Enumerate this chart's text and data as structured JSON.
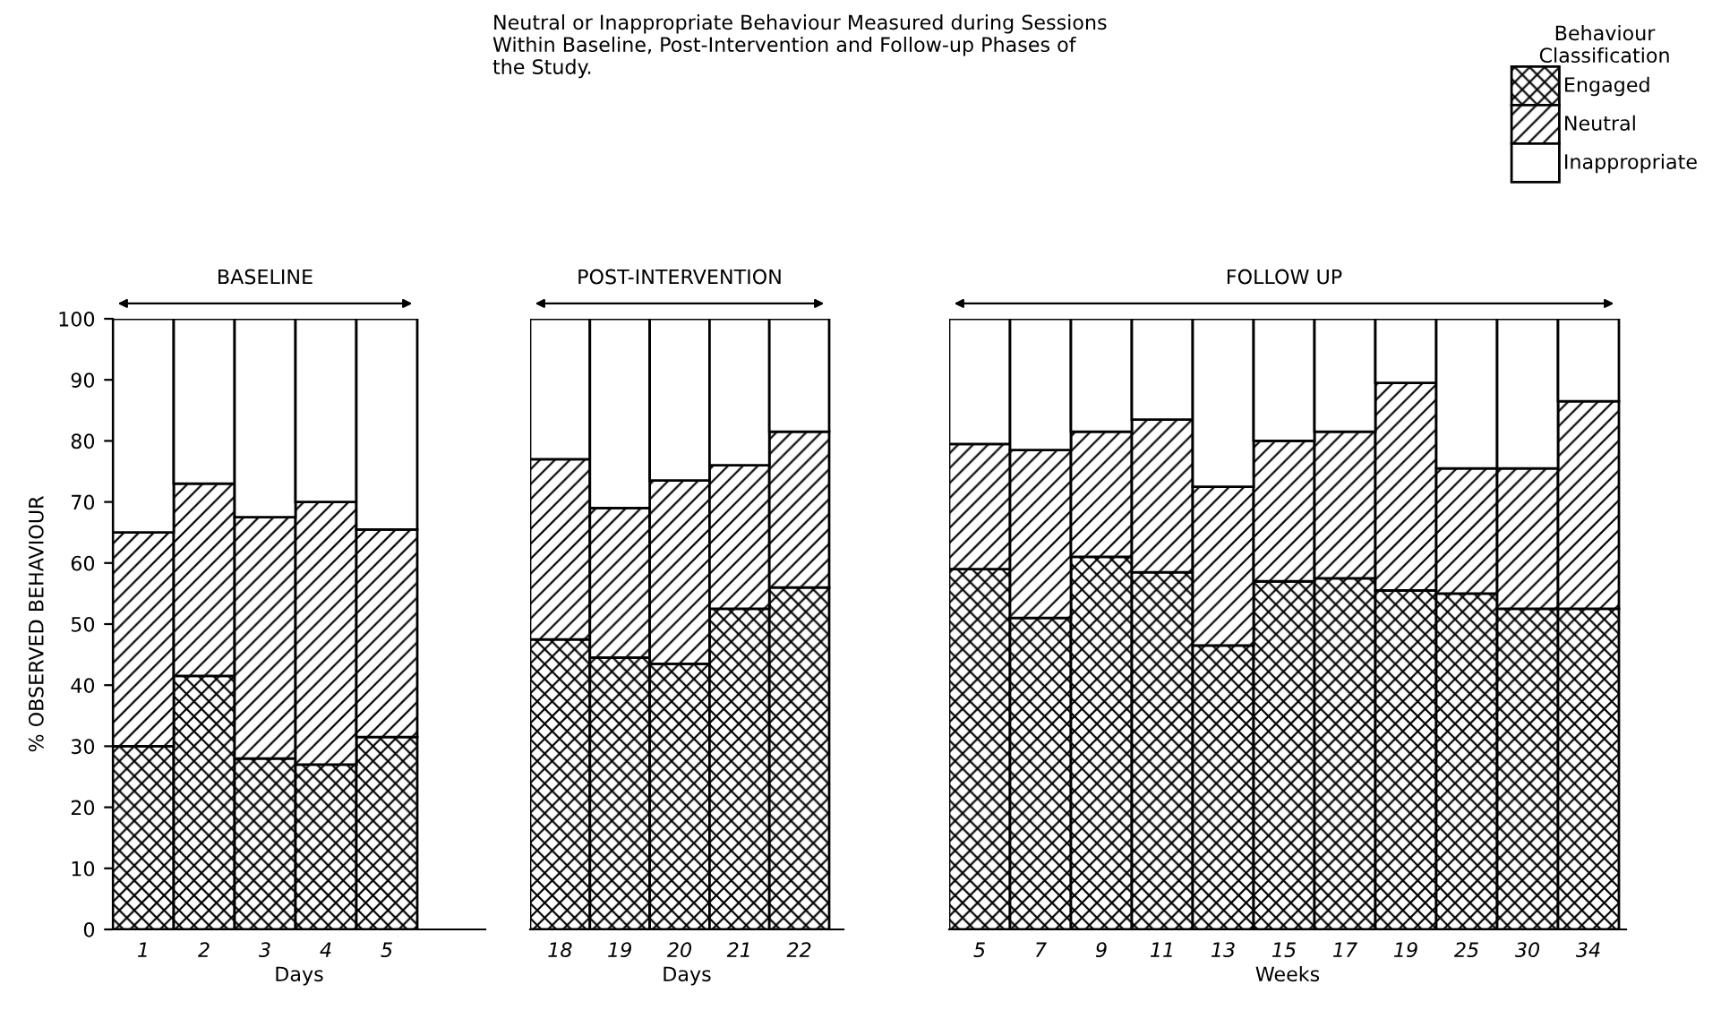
{
  "chart_data": [
    {
      "type": "bar",
      "stacked": true,
      "title": "BASELINE",
      "xlabel": "Days",
      "ylabel": "% OBSERVED BEHAVIOUR",
      "categories": [
        "1",
        "2",
        "3",
        "4",
        "5"
      ],
      "ylim": [
        0,
        100
      ],
      "yticks": [
        0,
        10,
        20,
        30,
        40,
        50,
        60,
        70,
        80,
        90,
        100
      ],
      "grid": false,
      "legend": "top right",
      "legend_title": "Behaviour\nClassification",
      "annotations": [
        "Neutral or Inappropriate Behaviour Measured during Sessions\nWithin Baseline, Post-Intervention and Follow-up Phases of\nthe Study."
      ],
      "series": [
        {
          "name": "Engaged",
          "color": "#000000",
          "values": [
            30,
            41.5,
            28,
            27,
            31.5
          ]
        },
        {
          "name": "Neutral",
          "color": "#000000",
          "values": [
            35,
            31.5,
            39.5,
            43,
            34
          ]
        },
        {
          "name": "Inappropriate",
          "color": "#ffffff",
          "values": [
            35,
            27,
            32.5,
            30,
            34.5
          ]
        }
      ]
    },
    {
      "type": "bar",
      "stacked": true,
      "title": "POST-INTERVENTION",
      "xlabel": "Days",
      "categories": [
        "18",
        "19",
        "20",
        "21",
        "22"
      ],
      "ylim": [
        0,
        100
      ],
      "tick_labels": "x",
      "grid": false,
      "series": [
        {
          "color": "#000000",
          "values": [
            47.5,
            44.5,
            43.5,
            52.5,
            56
          ]
        },
        {
          "color": "#000000",
          "values": [
            29.5,
            24.5,
            30,
            23.5,
            25.5
          ]
        },
        {
          "color": "#ffffff",
          "values": [
            23,
            31,
            26.5,
            24,
            18.5
          ]
        }
      ]
    },
    {
      "type": "bar",
      "stacked": true,
      "title": "FOLLOW UP",
      "xlabel": "Weeks",
      "categories": [
        "5",
        "7",
        "9",
        "11",
        "13",
        "15",
        "17",
        "19",
        "25",
        "30",
        "34"
      ],
      "ylim": [
        0,
        100
      ],
      "tick_labels": "x",
      "grid": false,
      "series": [
        {
          "color": "#000000",
          "values": [
            59,
            51,
            61,
            58.5,
            46.5,
            57,
            57.5,
            55.5,
            55,
            52.5,
            52.5
          ]
        },
        {
          "color": "#000000",
          "values": [
            20.5,
            27.5,
            20.5,
            25,
            26,
            23,
            24,
            34,
            20.5,
            23,
            34
          ]
        },
        {
          "color": "#ffffff",
          "values": [
            20.5,
            21.5,
            18.5,
            16.5,
            27.5,
            20,
            18.5,
            10.5,
            24.5,
            24.5,
            13.5
          ]
        }
      ]
    }
  ]
}
